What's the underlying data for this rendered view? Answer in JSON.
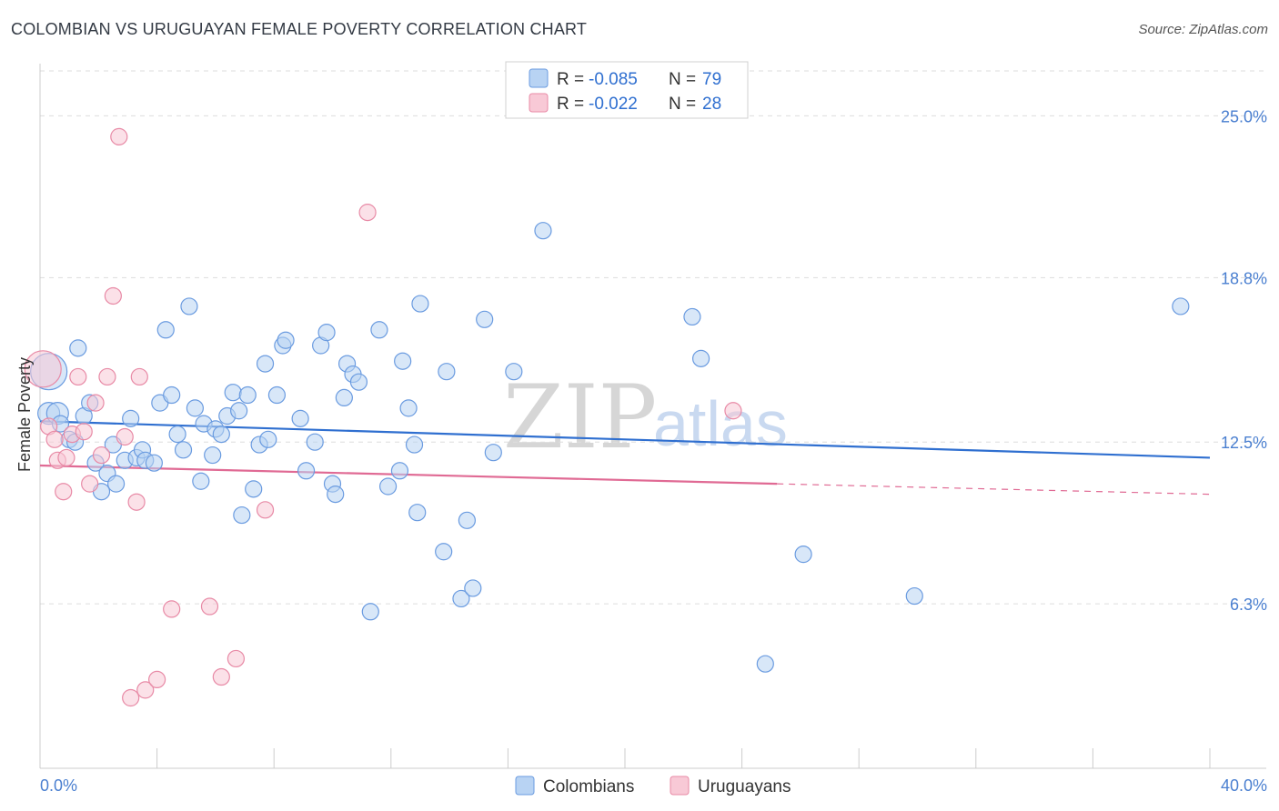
{
  "header": {
    "title": "COLOMBIAN VS URUGUAYAN FEMALE POVERTY CORRELATION CHART",
    "source": "Source: ZipAtlas.com"
  },
  "watermark": {
    "zip": "ZIP",
    "atlas": "atlas"
  },
  "colors": {
    "blue_fill": "#b8d3f3",
    "blue_stroke": "#6a9be0",
    "blue_line": "#2f6fd0",
    "pink_fill": "#f8c9d6",
    "pink_stroke": "#e88aa6",
    "pink_line": "#e06a94",
    "grid": "#dddddd",
    "axis": "#cccccc",
    "value_text": "#4a7fd0"
  },
  "legend": {
    "rows": [
      {
        "r_label": "R = ",
        "r_value": "-0.085",
        "n_label": "N = ",
        "n_value": "79"
      },
      {
        "r_label": "R = ",
        "r_value": "-0.022",
        "n_label": "N = ",
        "n_value": "28"
      }
    ]
  },
  "chart_data": {
    "type": "scatter",
    "title": "COLOMBIAN VS URUGUAYAN FEMALE POVERTY CORRELATION CHART",
    "xlabel": "",
    "ylabel": "Female Poverty",
    "xlim": [
      0,
      40
    ],
    "ylim": [
      0,
      27
    ],
    "x_tick_labels": [
      "0.0%",
      "40.0%"
    ],
    "y_ticks": [
      6.3,
      12.5,
      18.8,
      25.0
    ],
    "y_tick_labels": [
      "6.3%",
      "12.5%",
      "18.8%",
      "25.0%"
    ],
    "grid": true,
    "legend_position": "top-center",
    "series": [
      {
        "name": "Colombians",
        "trend": {
          "x": [
            0,
            40
          ],
          "y": [
            13.3,
            11.9
          ]
        },
        "points": [
          [
            0.3,
            15.2
          ],
          [
            0.3,
            13.6
          ],
          [
            0.6,
            13.6
          ],
          [
            0.7,
            13.2
          ],
          [
            1.0,
            12.6
          ],
          [
            1.2,
            12.5
          ],
          [
            1.3,
            16.1
          ],
          [
            1.5,
            13.5
          ],
          [
            1.7,
            14.0
          ],
          [
            1.9,
            11.7
          ],
          [
            2.1,
            10.6
          ],
          [
            2.3,
            11.3
          ],
          [
            2.5,
            12.4
          ],
          [
            2.6,
            10.9
          ],
          [
            2.9,
            11.8
          ],
          [
            3.1,
            13.4
          ],
          [
            3.3,
            11.9
          ],
          [
            3.5,
            12.2
          ],
          [
            3.6,
            11.8
          ],
          [
            3.9,
            11.7
          ],
          [
            4.1,
            14.0
          ],
          [
            4.3,
            16.8
          ],
          [
            4.5,
            14.3
          ],
          [
            4.7,
            12.8
          ],
          [
            4.9,
            12.2
          ],
          [
            5.1,
            17.7
          ],
          [
            5.3,
            13.8
          ],
          [
            5.5,
            11.0
          ],
          [
            5.6,
            13.2
          ],
          [
            5.9,
            12.0
          ],
          [
            6.0,
            13.0
          ],
          [
            6.2,
            12.8
          ],
          [
            6.4,
            13.5
          ],
          [
            6.6,
            14.4
          ],
          [
            6.8,
            13.7
          ],
          [
            6.9,
            9.7
          ],
          [
            7.1,
            14.3
          ],
          [
            7.3,
            10.7
          ],
          [
            7.5,
            12.4
          ],
          [
            7.7,
            15.5
          ],
          [
            7.8,
            12.6
          ],
          [
            8.1,
            14.3
          ],
          [
            8.3,
            16.2
          ],
          [
            8.4,
            16.4
          ],
          [
            8.9,
            13.4
          ],
          [
            9.1,
            11.4
          ],
          [
            9.4,
            12.5
          ],
          [
            9.6,
            16.2
          ],
          [
            9.8,
            16.7
          ],
          [
            10.0,
            10.9
          ],
          [
            10.1,
            10.5
          ],
          [
            10.4,
            14.2
          ],
          [
            10.5,
            15.5
          ],
          [
            10.7,
            15.1
          ],
          [
            10.9,
            14.8
          ],
          [
            11.3,
            6.0
          ],
          [
            11.6,
            16.8
          ],
          [
            11.9,
            10.8
          ],
          [
            12.3,
            11.4
          ],
          [
            12.4,
            15.6
          ],
          [
            12.6,
            13.8
          ],
          [
            12.8,
            12.4
          ],
          [
            12.9,
            9.8
          ],
          [
            13.0,
            17.8
          ],
          [
            13.8,
            8.3
          ],
          [
            13.9,
            15.2
          ],
          [
            14.4,
            6.5
          ],
          [
            14.8,
            6.9
          ],
          [
            14.6,
            9.5
          ],
          [
            15.2,
            17.2
          ],
          [
            15.5,
            12.1
          ],
          [
            16.2,
            15.2
          ],
          [
            17.2,
            20.6
          ],
          [
            22.3,
            17.3
          ],
          [
            22.6,
            15.7
          ],
          [
            24.8,
            4.0
          ],
          [
            26.1,
            8.2
          ],
          [
            29.9,
            6.6
          ],
          [
            39.0,
            17.7
          ]
        ]
      },
      {
        "name": "Uruguayans",
        "trend": {
          "x": [
            0,
            25.2
          ],
          "y": [
            11.6,
            10.9
          ]
        },
        "trend_dashed": {
          "x": [
            25.2,
            40
          ],
          "y": [
            10.9,
            10.5
          ]
        },
        "points": [
          [
            0.1,
            15.3
          ],
          [
            0.3,
            13.1
          ],
          [
            0.5,
            12.6
          ],
          [
            0.6,
            11.8
          ],
          [
            0.8,
            10.6
          ],
          [
            0.9,
            11.9
          ],
          [
            1.1,
            12.8
          ],
          [
            1.3,
            15.0
          ],
          [
            1.5,
            12.9
          ],
          [
            1.7,
            10.9
          ],
          [
            1.9,
            14.0
          ],
          [
            2.1,
            12.0
          ],
          [
            2.3,
            15.0
          ],
          [
            2.5,
            18.1
          ],
          [
            2.7,
            24.2
          ],
          [
            2.9,
            12.7
          ],
          [
            3.1,
            2.7
          ],
          [
            3.3,
            10.2
          ],
          [
            3.4,
            15.0
          ],
          [
            3.6,
            3.0
          ],
          [
            4.0,
            3.4
          ],
          [
            4.5,
            6.1
          ],
          [
            5.8,
            6.2
          ],
          [
            6.2,
            3.5
          ],
          [
            6.7,
            4.2
          ],
          [
            7.7,
            9.9
          ],
          [
            11.2,
            21.3
          ],
          [
            23.7,
            13.7
          ]
        ]
      }
    ]
  },
  "bottom_legend": {
    "items": [
      "Colombians",
      "Uruguayans"
    ]
  }
}
